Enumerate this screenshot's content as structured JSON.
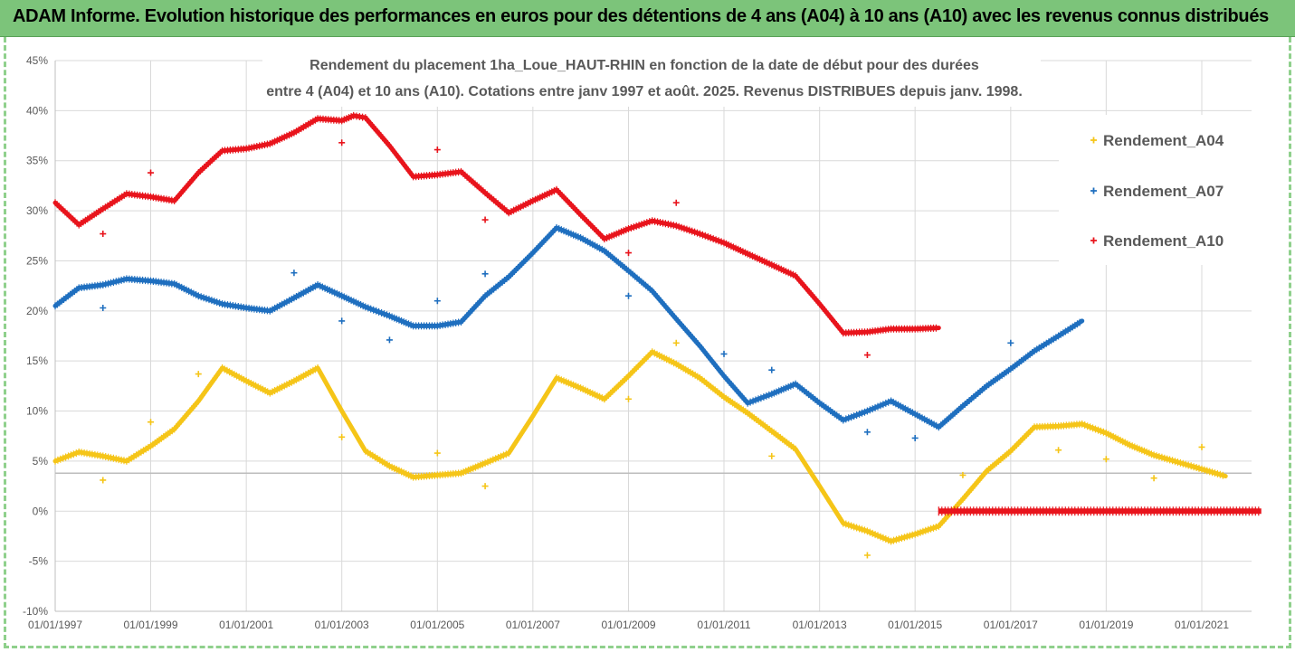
{
  "banner": {
    "title": "ADAM Informe. Evolution historique des performances en euros pour des détentions de 4 ans (A04) à 10 ans (A10) avec les revenus connus distribués"
  },
  "chart_data": {
    "type": "scatter",
    "title_line1": "Rendement du placement 1ha_Loue_HAUT-RHIN en fonction de la date de début pour des durées",
    "title_line2": "entre 4 (A04) et 10 ans (A10). Cotations entre janv 1997 et août. 2025. Revenus DISTRIBUES depuis janv. 1998.",
    "x_axis": {
      "type": "date",
      "range": [
        "1997-01-01",
        "2022-04-01"
      ],
      "ticks": [
        "01/01/1997",
        "01/01/1999",
        "01/01/2001",
        "01/01/2003",
        "01/01/2005",
        "01/01/2007",
        "01/01/2009",
        "01/01/2011",
        "01/01/2013",
        "01/01/2015",
        "01/01/2017",
        "01/01/2019",
        "01/01/2021"
      ]
    },
    "y_axis": {
      "min": -10,
      "max": 45,
      "step": 5,
      "unit": "%",
      "ticks": [
        "-10%",
        "-5%",
        "0%",
        "5%",
        "10%",
        "15%",
        "20%",
        "25%",
        "30%",
        "35%",
        "40%",
        "45%"
      ]
    },
    "grid": true,
    "legend_position": "right",
    "reference_line_y": 3.8,
    "series": [
      {
        "name": "Rendement_A04",
        "color": "#f5c518",
        "points": [
          [
            "1997-01-01",
            5.0
          ],
          [
            "1997-07-01",
            5.9
          ],
          [
            "1998-01-01",
            5.5
          ],
          [
            "1998-07-01",
            5.0
          ],
          [
            "1999-01-01",
            6.5
          ],
          [
            "1999-07-01",
            8.2
          ],
          [
            "2000-01-01",
            11.0
          ],
          [
            "2000-07-01",
            14.3
          ],
          [
            "2001-01-01",
            13.0
          ],
          [
            "2001-07-01",
            11.8
          ],
          [
            "2002-01-01",
            13.0
          ],
          [
            "2002-07-01",
            14.3
          ],
          [
            "2003-01-01",
            10.0
          ],
          [
            "2003-07-01",
            6.0
          ],
          [
            "2004-01-01",
            4.5
          ],
          [
            "2004-07-01",
            3.4
          ],
          [
            "2005-01-01",
            3.6
          ],
          [
            "2005-07-01",
            3.8
          ],
          [
            "2006-01-01",
            4.8
          ],
          [
            "2006-07-01",
            5.8
          ],
          [
            "2007-01-01",
            9.5
          ],
          [
            "2007-07-01",
            13.3
          ],
          [
            "2008-01-01",
            12.3
          ],
          [
            "2008-07-01",
            11.2
          ],
          [
            "2009-01-01",
            13.5
          ],
          [
            "2009-07-01",
            15.9
          ],
          [
            "2010-01-01",
            14.7
          ],
          [
            "2010-07-01",
            13.3
          ],
          [
            "2011-01-01",
            11.4
          ],
          [
            "2011-07-01",
            9.8
          ],
          [
            "2012-01-01",
            8.0
          ],
          [
            "2012-07-01",
            6.2
          ],
          [
            "2013-01-01",
            2.5
          ],
          [
            "2013-07-01",
            -1.2
          ],
          [
            "2014-01-01",
            -2.0
          ],
          [
            "2014-07-01",
            -3.0
          ],
          [
            "2015-01-01",
            -2.3
          ],
          [
            "2015-07-01",
            -1.5
          ],
          [
            "2016-01-01",
            1.2
          ],
          [
            "2016-07-01",
            4.0
          ],
          [
            "2017-01-01",
            6.0
          ],
          [
            "2017-07-01",
            8.4
          ],
          [
            "2018-01-01",
            8.5
          ],
          [
            "2018-07-01",
            8.7
          ],
          [
            "2019-01-01",
            7.8
          ],
          [
            "2019-07-01",
            6.6
          ],
          [
            "2020-01-01",
            5.6
          ],
          [
            "2020-07-01",
            4.9
          ],
          [
            "2021-01-01",
            4.2
          ],
          [
            "2021-07-01",
            3.5
          ]
        ],
        "outliers": [
          [
            "1998-01-01",
            3.1
          ],
          [
            "1999-01-01",
            8.9
          ],
          [
            "2000-01-01",
            13.7
          ],
          [
            "2003-01-01",
            7.4
          ],
          [
            "2005-01-01",
            5.8
          ],
          [
            "2006-01-01",
            2.5
          ],
          [
            "2009-01-01",
            11.2
          ],
          [
            "2010-01-01",
            16.8
          ],
          [
            "2012-01-01",
            5.5
          ],
          [
            "2014-01-01",
            -4.4
          ],
          [
            "2016-01-01",
            3.6
          ],
          [
            "2018-01-01",
            6.1
          ],
          [
            "2019-01-01",
            5.2
          ],
          [
            "2020-01-01",
            3.3
          ],
          [
            "2021-01-01",
            6.4
          ]
        ]
      },
      {
        "name": "Rendement_A07",
        "color": "#1f6fbf",
        "points": [
          [
            "1997-01-01",
            20.5
          ],
          [
            "1997-07-01",
            22.3
          ],
          [
            "1998-01-01",
            22.6
          ],
          [
            "1998-07-01",
            23.2
          ],
          [
            "1999-01-01",
            23.0
          ],
          [
            "1999-07-01",
            22.7
          ],
          [
            "2000-01-01",
            21.5
          ],
          [
            "2000-07-01",
            20.7
          ],
          [
            "2001-01-01",
            20.3
          ],
          [
            "2001-07-01",
            20.0
          ],
          [
            "2002-01-01",
            21.3
          ],
          [
            "2002-07-01",
            22.6
          ],
          [
            "2003-01-01",
            21.5
          ],
          [
            "2003-07-01",
            20.4
          ],
          [
            "2004-01-01",
            19.5
          ],
          [
            "2004-07-01",
            18.5
          ],
          [
            "2005-01-01",
            18.5
          ],
          [
            "2005-07-01",
            18.9
          ],
          [
            "2006-01-01",
            21.5
          ],
          [
            "2006-07-01",
            23.4
          ],
          [
            "2007-01-01",
            25.8
          ],
          [
            "2007-07-01",
            28.3
          ],
          [
            "2008-01-01",
            27.3
          ],
          [
            "2008-07-01",
            26.0
          ],
          [
            "2009-01-01",
            24.0
          ],
          [
            "2009-07-01",
            22.0
          ],
          [
            "2010-01-01",
            19.2
          ],
          [
            "2010-07-01",
            16.5
          ],
          [
            "2011-01-01",
            13.5
          ],
          [
            "2011-07-01",
            10.8
          ],
          [
            "2012-01-01",
            11.7
          ],
          [
            "2012-07-01",
            12.7
          ],
          [
            "2013-01-01",
            10.8
          ],
          [
            "2013-07-01",
            9.1
          ],
          [
            "2014-01-01",
            10.0
          ],
          [
            "2014-07-01",
            11.0
          ],
          [
            "2015-01-01",
            9.7
          ],
          [
            "2015-07-01",
            8.4
          ],
          [
            "2016-01-01",
            10.5
          ],
          [
            "2016-07-01",
            12.5
          ],
          [
            "2017-01-01",
            14.2
          ],
          [
            "2017-07-01",
            16.0
          ],
          [
            "2018-01-01",
            17.5
          ],
          [
            "2018-07-01",
            19.0
          ]
        ],
        "outliers": [
          [
            "1998-01-01",
            20.3
          ],
          [
            "2002-01-01",
            23.8
          ],
          [
            "2003-01-01",
            19.0
          ],
          [
            "2004-01-01",
            17.1
          ],
          [
            "2005-01-01",
            21.0
          ],
          [
            "2006-01-01",
            23.7
          ],
          [
            "2009-01-01",
            21.5
          ],
          [
            "2011-01-01",
            15.7
          ],
          [
            "2012-01-01",
            14.1
          ],
          [
            "2014-01-01",
            7.9
          ],
          [
            "2015-01-01",
            7.3
          ],
          [
            "2017-01-01",
            16.8
          ]
        ]
      },
      {
        "name": "Rendement_A10",
        "color": "#e8141c",
        "points": [
          [
            "1997-01-01",
            30.8
          ],
          [
            "1997-07-01",
            28.6
          ],
          [
            "1998-01-01",
            30.2
          ],
          [
            "1998-07-01",
            31.7
          ],
          [
            "1999-01-01",
            31.4
          ],
          [
            "1999-07-01",
            31.0
          ],
          [
            "2000-01-01",
            33.8
          ],
          [
            "2000-07-01",
            36.0
          ],
          [
            "2001-01-01",
            36.2
          ],
          [
            "2001-07-01",
            36.7
          ],
          [
            "2002-01-01",
            37.8
          ],
          [
            "2002-07-01",
            39.2
          ],
          [
            "2003-01-01",
            39.0
          ],
          [
            "2003-04-01",
            39.5
          ],
          [
            "2003-07-01",
            39.3
          ],
          [
            "2004-01-01",
            36.5
          ],
          [
            "2004-07-01",
            33.4
          ],
          [
            "2005-01-01",
            33.6
          ],
          [
            "2005-07-01",
            33.9
          ],
          [
            "2006-01-01",
            31.8
          ],
          [
            "2006-07-01",
            29.8
          ],
          [
            "2007-01-01",
            31.0
          ],
          [
            "2007-07-01",
            32.1
          ],
          [
            "2008-01-01",
            29.6
          ],
          [
            "2008-07-01",
            27.2
          ],
          [
            "2009-01-01",
            28.2
          ],
          [
            "2009-07-01",
            29.0
          ],
          [
            "2010-01-01",
            28.5
          ],
          [
            "2010-07-01",
            27.7
          ],
          [
            "2011-01-01",
            26.8
          ],
          [
            "2011-07-01",
            25.7
          ],
          [
            "2012-01-01",
            24.6
          ],
          [
            "2012-07-01",
            23.5
          ],
          [
            "2013-01-01",
            20.7
          ],
          [
            "2013-07-01",
            17.8
          ],
          [
            "2014-01-01",
            17.9
          ],
          [
            "2014-07-01",
            18.2
          ],
          [
            "2015-01-01",
            18.2
          ],
          [
            "2015-07-01",
            18.3
          ]
        ],
        "outliers": [
          [
            "1998-01-01",
            27.7
          ],
          [
            "1999-01-01",
            33.8
          ],
          [
            "2003-01-01",
            36.8
          ],
          [
            "2005-01-01",
            36.1
          ],
          [
            "2006-01-01",
            29.1
          ],
          [
            "2009-01-01",
            25.8
          ],
          [
            "2010-01-01",
            30.8
          ],
          [
            "2014-01-01",
            15.6
          ]
        ],
        "zero_segment": {
          "from": "2015-07-01",
          "to": "2022-04-01",
          "value": 0
        }
      }
    ]
  }
}
